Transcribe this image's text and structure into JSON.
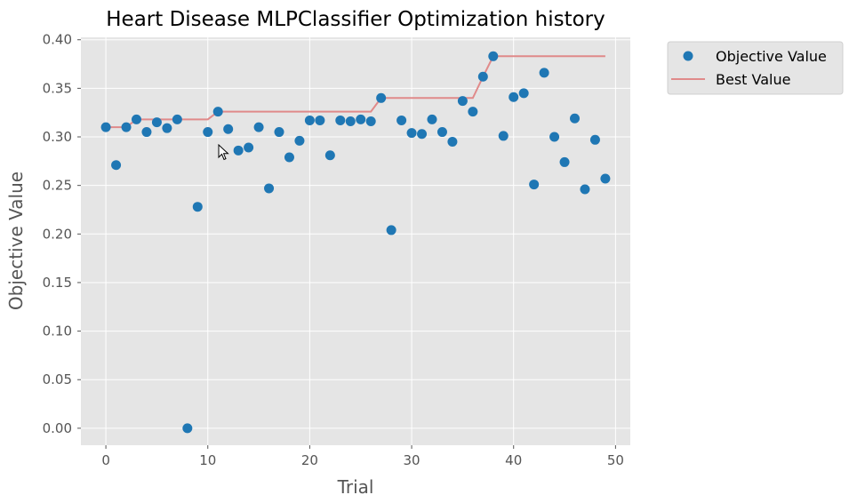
{
  "chart_data": {
    "type": "scatter",
    "title": "Heart Disease MLPClassifier Optimization history",
    "xlabel": "Trial",
    "ylabel": "Objective Value",
    "xlim": [
      -2.45,
      51.45
    ],
    "ylim": [
      -0.0175,
      0.4025
    ],
    "xticks": [
      0,
      10,
      20,
      30,
      40,
      50
    ],
    "xtick_labels": [
      "0",
      "10",
      "20",
      "30",
      "40",
      "50"
    ],
    "yticks": [
      0.0,
      0.05,
      0.1,
      0.15,
      0.2,
      0.25,
      0.3,
      0.35,
      0.4
    ],
    "ytick_labels": [
      "0.00",
      "0.05",
      "0.10",
      "0.15",
      "0.20",
      "0.25",
      "0.30",
      "0.35",
      "0.40"
    ],
    "grid": true,
    "legend_position": "outside-top-right",
    "series": [
      {
        "name": "Objective Value",
        "kind": "scatter",
        "color": "#1f77b4",
        "x": [
          0,
          1,
          2,
          3,
          4,
          5,
          6,
          7,
          8,
          9,
          10,
          11,
          12,
          13,
          14,
          15,
          16,
          17,
          18,
          19,
          20,
          21,
          22,
          23,
          24,
          25,
          26,
          27,
          28,
          29,
          30,
          31,
          32,
          33,
          34,
          35,
          36,
          37,
          38,
          39,
          40,
          41,
          42,
          43,
          44,
          45,
          46,
          47,
          48,
          49
        ],
        "y": [
          0.31,
          0.271,
          0.31,
          0.318,
          0.305,
          0.315,
          0.309,
          0.318,
          0.0,
          0.228,
          0.305,
          0.326,
          0.308,
          0.286,
          0.289,
          0.31,
          0.247,
          0.305,
          0.279,
          0.296,
          0.317,
          0.317,
          0.281,
          0.317,
          0.316,
          0.318,
          0.316,
          0.34,
          0.204,
          0.317,
          0.304,
          0.303,
          0.318,
          0.305,
          0.295,
          0.337,
          0.326,
          0.362,
          0.383,
          0.301,
          0.341,
          0.345,
          0.251,
          0.366,
          0.3,
          0.274,
          0.319,
          0.246,
          0.297,
          0.257
        ]
      },
      {
        "name": "Best Value",
        "kind": "line",
        "color": "#e08a8a",
        "x": [
          0,
          1,
          2,
          3,
          4,
          5,
          6,
          7,
          8,
          9,
          10,
          11,
          12,
          13,
          14,
          15,
          16,
          17,
          18,
          19,
          20,
          21,
          22,
          23,
          24,
          25,
          26,
          27,
          28,
          29,
          30,
          31,
          32,
          33,
          34,
          35,
          36,
          37,
          38,
          39,
          40,
          41,
          42,
          43,
          44,
          45,
          46,
          47,
          48,
          49
        ],
        "y": [
          0.31,
          0.31,
          0.31,
          0.318,
          0.318,
          0.318,
          0.318,
          0.318,
          0.318,
          0.318,
          0.318,
          0.326,
          0.326,
          0.326,
          0.326,
          0.326,
          0.326,
          0.326,
          0.326,
          0.326,
          0.326,
          0.326,
          0.326,
          0.326,
          0.326,
          0.326,
          0.326,
          0.34,
          0.34,
          0.34,
          0.34,
          0.34,
          0.34,
          0.34,
          0.34,
          0.34,
          0.34,
          0.362,
          0.383,
          0.383,
          0.383,
          0.383,
          0.383,
          0.383,
          0.383,
          0.383,
          0.383,
          0.383,
          0.383,
          0.383
        ]
      }
    ]
  },
  "colors": {
    "plot_background": "#e5e5e5",
    "grid": "#ffffff",
    "scatter": "#1f77b4",
    "best_line": "#e08a8a",
    "legend_background": "#e5e5e5"
  },
  "cursor_icon": "pointer-cursor-icon"
}
